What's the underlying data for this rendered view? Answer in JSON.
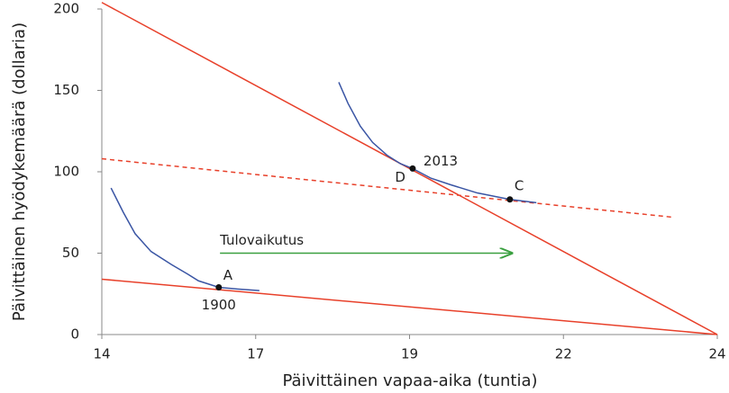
{
  "chart_data": {
    "type": "line",
    "xlabel": "Päivittäinen vapaa-aika (tuntia)",
    "ylabel": "Päivittäinen hyödykemäärä (dollaria)",
    "xlim": [
      14,
      24
    ],
    "ylim": [
      0,
      200
    ],
    "xticks": [
      14,
      {
        "value": 16.5,
        "label": "17"
      },
      19,
      {
        "value": 21.5,
        "label": "22"
      },
      24
    ],
    "yticks": [
      0,
      50,
      100,
      150,
      200
    ],
    "series": [
      {
        "color": "#e8402a",
        "dashed": false,
        "x": [
          14,
          24
        ],
        "values": [
          34,
          0
        ]
      },
      {
        "color": "#e8402a",
        "dashed": false,
        "x": [
          14,
          24
        ],
        "values": [
          204,
          0
        ]
      },
      {
        "color": "#e8402a",
        "dashed": true,
        "x": [
          14,
          23.3
        ],
        "values": [
          108,
          72
        ]
      },
      {
        "color": "#3a55a4",
        "dashed": false,
        "x": [
          14.15,
          14.35,
          14.54,
          14.8,
          15.13,
          15.4,
          15.57,
          15.9,
          16.2,
          16.56
        ],
        "values": [
          90,
          75,
          62,
          51,
          43,
          37,
          33,
          29,
          28,
          27
        ]
      },
      {
        "color": "#3a55a4",
        "dashed": false,
        "x": [
          17.85,
          18.0,
          18.2,
          18.4,
          18.64,
          18.85,
          19.05,
          19.35,
          19.67,
          20.1,
          20.63,
          21.06
        ],
        "values": [
          155,
          142,
          128,
          118,
          110,
          105,
          102,
          96,
          92,
          87,
          83,
          81
        ]
      }
    ],
    "points": {
      "color": "#111111",
      "x": [
        15.9,
        19.05,
        20.63
      ],
      "values": [
        29,
        102,
        83
      ],
      "labels": [
        "A",
        "D",
        "C"
      ]
    },
    "year_labels": [
      "1900",
      "2013"
    ],
    "arrow": {
      "text": "Tulovaikutus",
      "color": "#3aa040",
      "x": [
        15.92,
        20.66
      ],
      "y": 50
    }
  }
}
